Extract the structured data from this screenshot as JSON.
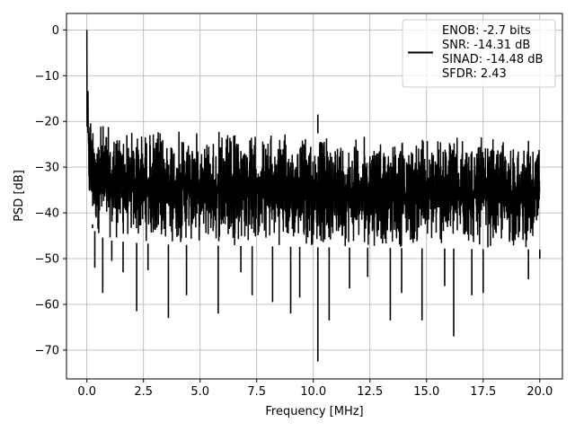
{
  "chart_data": {
    "type": "line",
    "title": "",
    "xlabel": "Frequency [MHz]",
    "ylabel": "PSD [dB]",
    "xlim": [
      -0.9,
      21.0
    ],
    "ylim": [
      -76.3,
      3.6
    ],
    "x_ticks": [
      0.0,
      2.5,
      5.0,
      7.5,
      10.0,
      12.5,
      15.0,
      17.5,
      20.0
    ],
    "x_tick_labels": [
      "0.0",
      "2.5",
      "5.0",
      "7.5",
      "10.0",
      "12.5",
      "15.0",
      "17.5",
      "20.0"
    ],
    "y_ticks": [
      0,
      -10,
      -20,
      -30,
      -40,
      -50,
      -60,
      -70
    ],
    "y_tick_labels": [
      "0",
      "−10",
      "−20",
      "−30",
      "−40",
      "−50",
      "−60",
      "−70"
    ],
    "grid": true,
    "legend_position": "top-right",
    "series": [
      {
        "color": "#000000",
        "legend_lines": [
          "ENOB: -2.7 bits",
          "SNR: -14.31 dB",
          "SINAD: -14.48 dB",
          "SFDR: 2.43"
        ],
        "envelope": {
          "x": [
            0.0,
            0.05,
            0.1,
            0.2,
            0.35,
            0.5,
            1.0,
            2.0,
            3.0,
            4.0,
            5.0,
            6.0,
            8.0,
            10.0,
            12.0,
            14.0,
            16.0,
            18.0,
            20.0
          ],
          "upper": [
            0.0,
            -8.0,
            -15.0,
            -17.5,
            -18.5,
            -19.5,
            -20.5,
            -21.0,
            -21.3,
            -21.6,
            -21.8,
            -22.0,
            -22.3,
            -22.6,
            -22.8,
            -23.0,
            -23.2,
            -23.5,
            -23.5
          ],
          "lower": [
            -27.0,
            -36.0,
            -40.0,
            -43.0,
            -44.0,
            -45.0,
            -46.0,
            -46.5,
            -46.8,
            -47.0,
            -47.0,
            -47.2,
            -47.3,
            -47.5,
            -47.6,
            -47.7,
            -47.8,
            -48.0,
            -48.0
          ]
        },
        "spikes": [
          {
            "x": 0.0,
            "y": 0.0
          },
          {
            "x": 0.25,
            "y": -42.5
          },
          {
            "x": 0.35,
            "y": -52.0
          },
          {
            "x": 0.7,
            "y": -57.5
          },
          {
            "x": 1.1,
            "y": -50.5
          },
          {
            "x": 1.6,
            "y": -53.0
          },
          {
            "x": 2.2,
            "y": -61.5
          },
          {
            "x": 2.7,
            "y": -52.5
          },
          {
            "x": 3.6,
            "y": -63.0
          },
          {
            "x": 4.4,
            "y": -58.0
          },
          {
            "x": 5.8,
            "y": -62.0
          },
          {
            "x": 6.8,
            "y": -53.0
          },
          {
            "x": 7.3,
            "y": -58.0
          },
          {
            "x": 8.2,
            "y": -59.5
          },
          {
            "x": 9.0,
            "y": -62.0
          },
          {
            "x": 9.4,
            "y": -58.5
          },
          {
            "x": 10.2,
            "y": -72.5
          },
          {
            "x": 10.2,
            "y": -18.5
          },
          {
            "x": 10.7,
            "y": -63.5
          },
          {
            "x": 11.6,
            "y": -56.5
          },
          {
            "x": 12.4,
            "y": -54.0
          },
          {
            "x": 13.4,
            "y": -63.5
          },
          {
            "x": 13.9,
            "y": -57.5
          },
          {
            "x": 14.8,
            "y": -63.5
          },
          {
            "x": 15.8,
            "y": -56.0
          },
          {
            "x": 16.2,
            "y": -67.0
          },
          {
            "x": 17.0,
            "y": -58.0
          },
          {
            "x": 17.5,
            "y": -57.5
          },
          {
            "x": 19.5,
            "y": -54.5
          },
          {
            "x": 20.0,
            "y": -50.0
          }
        ]
      }
    ]
  }
}
